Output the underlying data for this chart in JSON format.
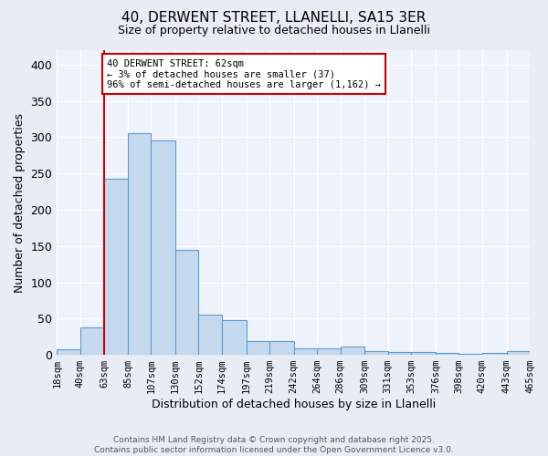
{
  "title1": "40, DERWENT STREET, LLANELLI, SA15 3ER",
  "title2": "Size of property relative to detached houses in Llanelli",
  "xlabel": "Distribution of detached houses by size in Llanelli",
  "ylabel": "Number of detached properties",
  "bin_edges": [
    18,
    40,
    63,
    85,
    107,
    130,
    152,
    174,
    197,
    219,
    242,
    264,
    286,
    309,
    331,
    353,
    376,
    398,
    420,
    443,
    465
  ],
  "counts": [
    8,
    38,
    243,
    306,
    295,
    145,
    56,
    48,
    19,
    19,
    9,
    9,
    11,
    5,
    4,
    4,
    3,
    1,
    2,
    5
  ],
  "bar_facecolor": "#c5d9ee",
  "bar_edgecolor": "#5b9bd5",
  "bar_linewidth": 0.8,
  "vline_x": 63,
  "vline_color": "#cc0000",
  "vline_linewidth": 1.5,
  "annotation_text": "40 DERWENT STREET: 62sqm\n← 3% of detached houses are smaller (37)\n96% of semi-detached houses are larger (1,162) →",
  "annotation_box_color": "#cc0000",
  "annotation_box_facecolor": "white",
  "ylim": [
    0,
    420
  ],
  "yticks": [
    0,
    50,
    100,
    150,
    200,
    250,
    300,
    350,
    400
  ],
  "fig_facecolor": "#e8ecf5",
  "ax_facecolor": "#eef2fb",
  "grid_color": "#ffffff",
  "footer_text": "Contains HM Land Registry data © Crown copyright and database right 2025.\nContains public sector information licensed under the Open Government Licence v3.0.",
  "tick_labels": [
    "18sqm",
    "40sqm",
    "63sqm",
    "85sqm",
    "107sqm",
    "130sqm",
    "152sqm",
    "174sqm",
    "197sqm",
    "219sqm",
    "242sqm",
    "264sqm",
    "286sqm",
    "309sqm",
    "331sqm",
    "353sqm",
    "376sqm",
    "398sqm",
    "420sqm",
    "443sqm",
    "465sqm"
  ]
}
